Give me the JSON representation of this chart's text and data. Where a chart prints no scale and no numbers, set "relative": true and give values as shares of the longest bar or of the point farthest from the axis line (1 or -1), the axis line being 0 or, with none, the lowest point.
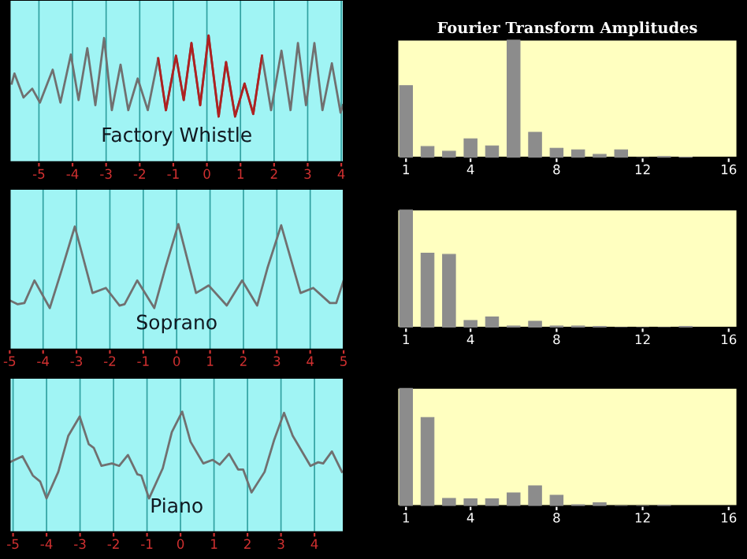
{
  "chart_data": [
    {
      "type": "line",
      "title": "Factory Whistle",
      "relative": true,
      "xlim": [
        -5.87,
        4.07
      ],
      "xticks": [
        -5,
        -4,
        -3,
        -2,
        -1,
        0,
        1,
        2,
        3,
        4
      ],
      "grid": "x",
      "series": [
        {
          "color": "#707070",
          "x": [
            -5.81,
            -5.73,
            -5.46,
            -5.2,
            -4.97,
            -4.59,
            -4.36,
            -4.05,
            -3.82,
            -3.56,
            -3.32,
            -3.06,
            -2.83,
            -2.57,
            -2.34,
            -2.06,
            -1.76,
            -1.45,
            -1.22,
            -0.92,
            -0.69,
            -0.46,
            -0.2,
            0.05,
            0.35,
            0.57,
            0.84,
            1.12,
            1.38,
            1.64,
            1.91,
            2.22,
            2.49,
            2.71,
            2.95,
            3.2,
            3.44,
            3.72,
            3.98,
            4.05
          ],
          "values": [
            0.62,
            0.7,
            0.51,
            0.58,
            0.47,
            0.73,
            0.47,
            0.85,
            0.49,
            0.9,
            0.45,
            0.98,
            0.41,
            0.77,
            0.41,
            0.66,
            0.41,
            0.82,
            0.41,
            0.84,
            0.49,
            0.94,
            0.45,
            1.0,
            0.36,
            0.79,
            0.36,
            0.62,
            0.38,
            0.84,
            0.41,
            0.88,
            0.41,
            0.94,
            0.45,
            0.94,
            0.41,
            0.78,
            0.39,
            0.45
          ]
        },
        {
          "color": "#b02020",
          "x": [
            -1.45,
            -1.22,
            -0.92,
            -0.69,
            -0.46,
            -0.2,
            0.05,
            0.35,
            0.57,
            0.84,
            1.12,
            1.38,
            1.64
          ],
          "values": [
            0.82,
            0.41,
            0.84,
            0.49,
            0.94,
            0.45,
            1.0,
            0.36,
            0.79,
            0.36,
            0.62,
            0.38,
            0.84
          ]
        }
      ]
    },
    {
      "type": "bar",
      "title": "Fourier Transform Amplitudes",
      "relative": true,
      "xlim": [
        0.6,
        16.4
      ],
      "xticks": [
        1,
        4,
        8,
        12,
        16
      ],
      "series": [
        {
          "color": "#8c8c8c",
          "x": [
            1,
            2,
            3,
            4,
            5,
            6,
            7,
            8,
            9,
            10,
            11,
            12,
            13,
            14
          ],
          "values": [
            0.61,
            0.094,
            0.054,
            0.16,
            0.1,
            1.0,
            0.215,
            0.08,
            0.067,
            0.027,
            0.067,
            0,
            0.01,
            0.005
          ]
        }
      ]
    },
    {
      "type": "line",
      "title": "Soprano",
      "relative": true,
      "xlim": [
        -5,
        5
      ],
      "xticks": [
        -5,
        -4,
        -3,
        -2,
        -1,
        0,
        1,
        2,
        3,
        4,
        5
      ],
      "grid": "x",
      "series": [
        {
          "color": "#707070",
          "x": [
            -4.99,
            -4.76,
            -4.56,
            -4.26,
            -3.8,
            -3.47,
            -3.05,
            -2.52,
            -2.12,
            -1.71,
            -1.56,
            -1.18,
            -0.67,
            -0.34,
            0.05,
            0.58,
            0.96,
            1.5,
            1.96,
            2.41,
            2.72,
            3.13,
            3.71,
            4.09,
            4.59,
            4.78,
            5.0
          ],
          "values": [
            0.39,
            0.36,
            0.37,
            0.55,
            0.33,
            0.61,
            0.98,
            0.45,
            0.49,
            0.35,
            0.36,
            0.55,
            0.33,
            0.65,
            1.0,
            0.45,
            0.51,
            0.35,
            0.55,
            0.35,
            0.65,
            0.99,
            0.45,
            0.49,
            0.37,
            0.37,
            0.55
          ]
        }
      ]
    },
    {
      "type": "bar",
      "relative": true,
      "xlim": [
        0.6,
        16.4
      ],
      "xticks": [
        1,
        4,
        8,
        12,
        16
      ],
      "series": [
        {
          "color": "#8c8c8c",
          "x": [
            1,
            2,
            3,
            4,
            5,
            6,
            7,
            8,
            9,
            10,
            11,
            12,
            13,
            14
          ],
          "values": [
            1.0,
            0.63,
            0.62,
            0.06,
            0.09,
            0.013,
            0.054,
            0.013,
            0.013,
            0.01,
            0,
            0,
            0,
            0.01
          ]
        }
      ]
    },
    {
      "type": "line",
      "title": "Piano",
      "relative": true,
      "xlim": [
        -5.1,
        4.87
      ],
      "xticks": [
        -5,
        -4,
        -3,
        -2,
        -1,
        0,
        1,
        2,
        3,
        4
      ],
      "grid": "x",
      "series": [
        {
          "color": "#707070",
          "x": [
            -5.1,
            -4.72,
            -4.41,
            -4.19,
            -4.0,
            -3.65,
            -3.35,
            -3.01,
            -2.74,
            -2.59,
            -2.36,
            -2.05,
            -1.83,
            -1.57,
            -1.29,
            -1.17,
            -0.94,
            -0.53,
            -0.26,
            0.05,
            0.3,
            0.68,
            0.96,
            1.17,
            1.45,
            1.72,
            1.87,
            2.12,
            2.51,
            2.79,
            3.09,
            3.35,
            3.88,
            4.11,
            4.26,
            4.52,
            4.82
          ],
          "values": [
            0.58,
            0.63,
            0.47,
            0.42,
            0.28,
            0.5,
            0.8,
            0.96,
            0.73,
            0.7,
            0.55,
            0.57,
            0.55,
            0.64,
            0.48,
            0.47,
            0.28,
            0.53,
            0.83,
            1.0,
            0.75,
            0.57,
            0.6,
            0.56,
            0.65,
            0.52,
            0.52,
            0.33,
            0.5,
            0.76,
            0.99,
            0.8,
            0.55,
            0.58,
            0.57,
            0.67,
            0.5
          ]
        }
      ]
    },
    {
      "type": "bar",
      "relative": true,
      "xlim": [
        0.6,
        16.4
      ],
      "xticks": [
        1,
        4,
        8,
        12,
        16
      ],
      "series": [
        {
          "color": "#8c8c8c",
          "x": [
            1,
            2,
            3,
            4,
            5,
            6,
            7,
            8,
            9,
            10,
            11,
            12,
            13
          ],
          "values": [
            1.0,
            0.75,
            0.063,
            0.06,
            0.06,
            0.11,
            0.17,
            0.09,
            0.01,
            0.027,
            0,
            0,
            0.005
          ]
        }
      ]
    }
  ]
}
